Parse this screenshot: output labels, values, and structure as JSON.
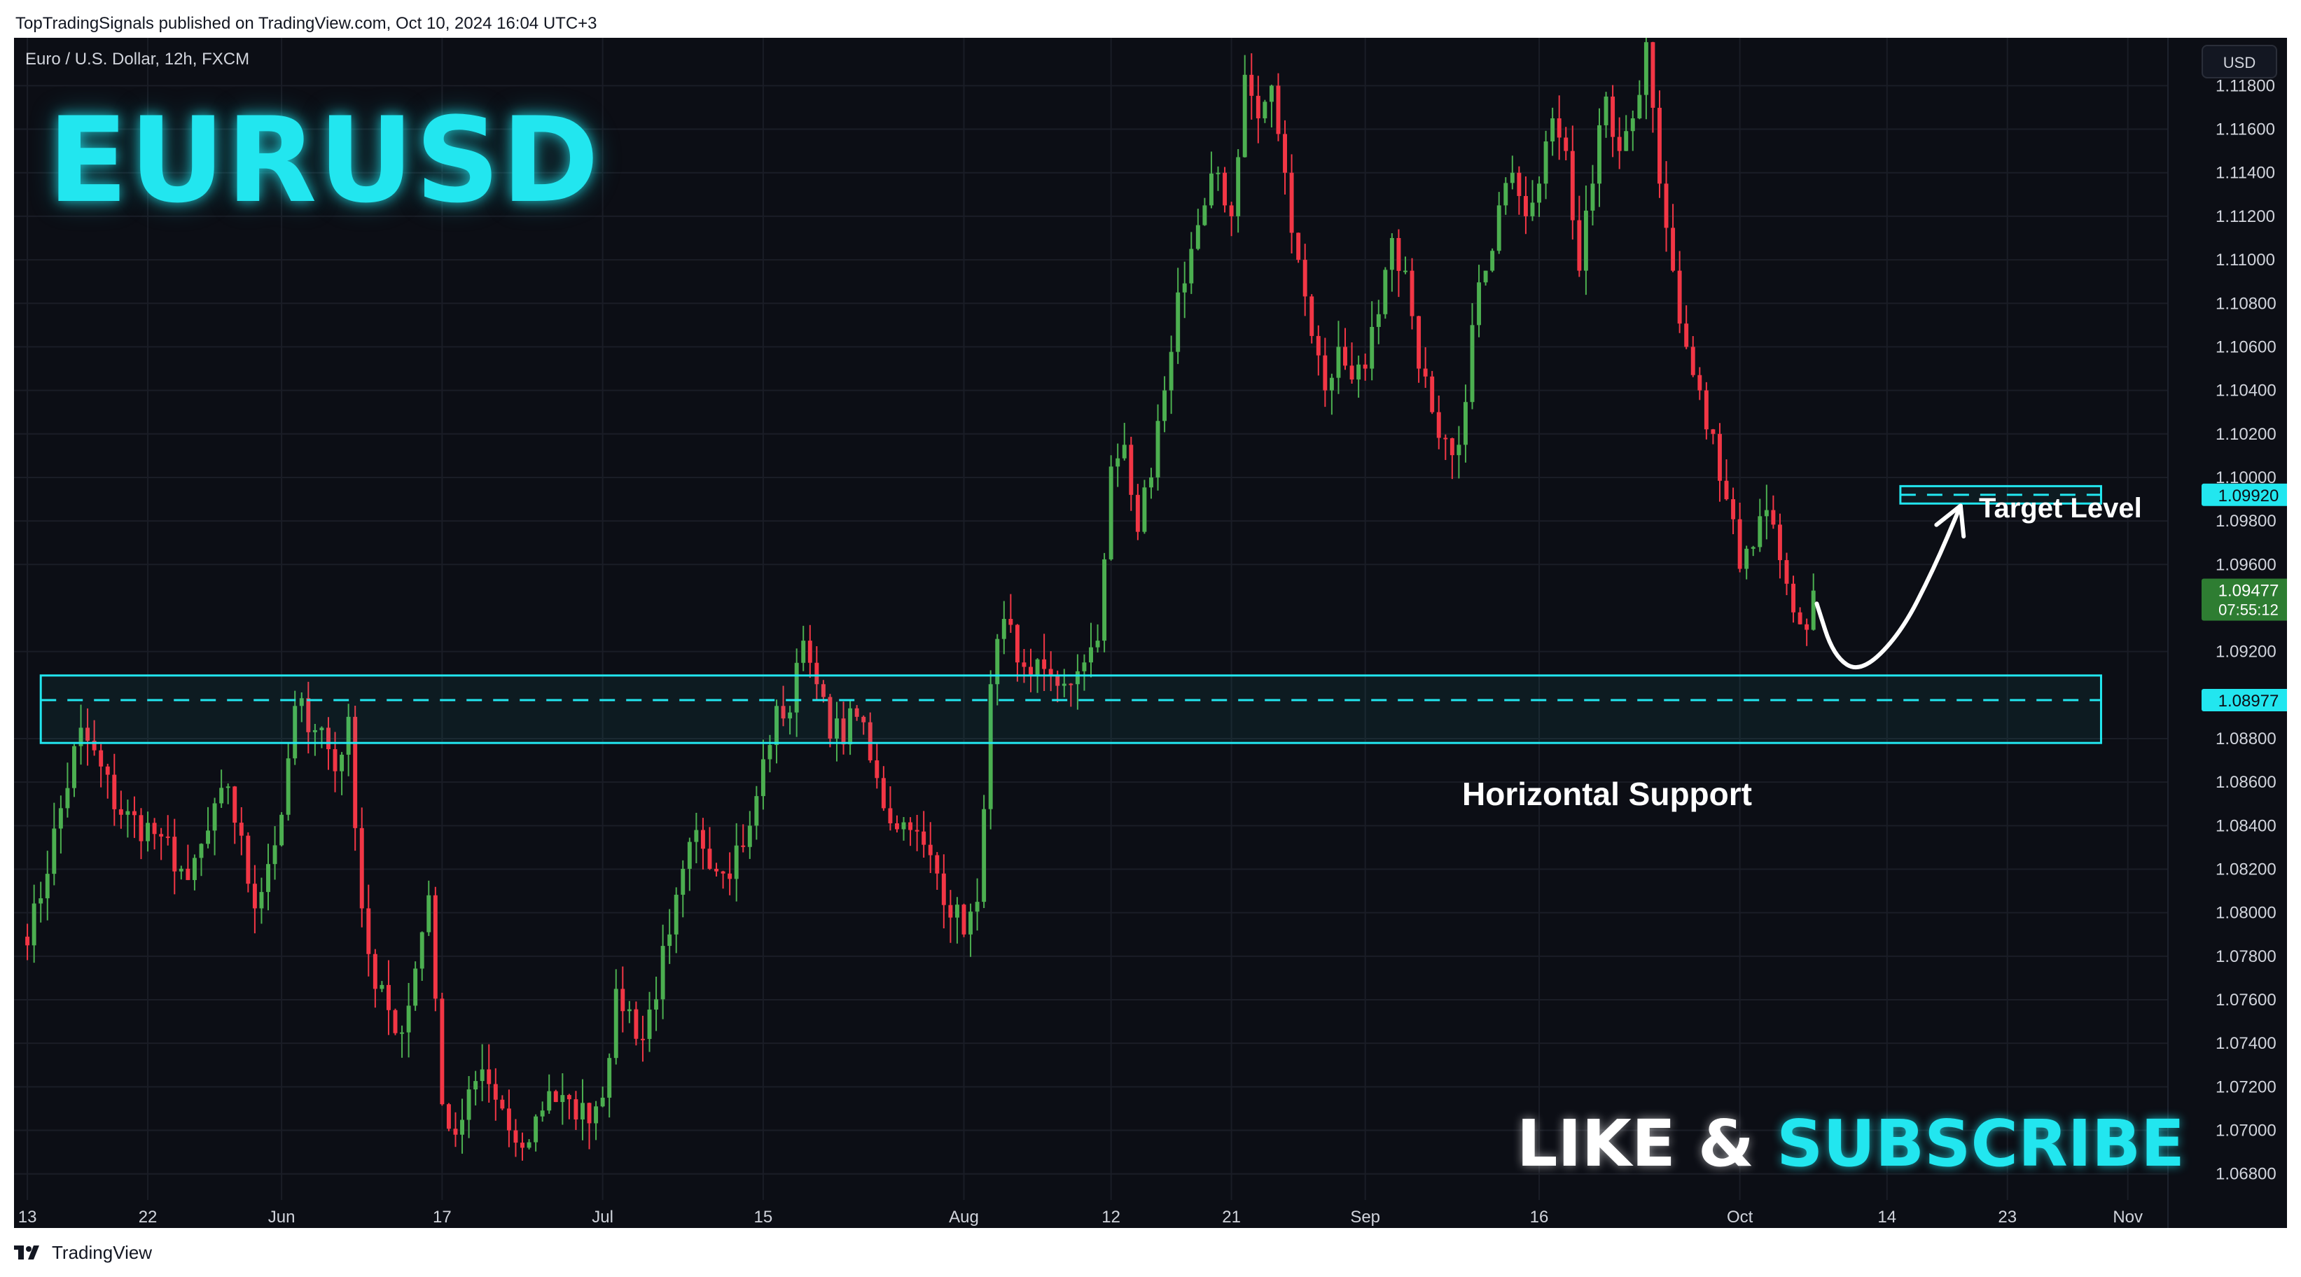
{
  "header": {
    "publish_line": "TopTradingSignals published on TradingView.com, Oct 10, 2024 16:04 UTC+3"
  },
  "footer": {
    "brand": "TradingView",
    "logo_icon": "tradingview-logo-icon"
  },
  "overlay": {
    "title": "EURUSD",
    "cta_like": "LIKE &",
    "cta_subscribe": "SUBSCRIBE",
    "target_label": "Target Level",
    "support_label": "Horizontal Support",
    "currency": "USD"
  },
  "colors": {
    "background": "#0c0e15",
    "up": "#4caf50",
    "down": "#f23645",
    "accent": "#22e6ef",
    "grid": "#1a1d26",
    "axis_text": "#d1d4dc"
  },
  "chart_data": {
    "type": "candlestick",
    "title": "Euro / U.S. Dollar, 12h, FXCM",
    "symbol": "EURUSD",
    "timeframe": "12h",
    "xlabel": "",
    "ylabel": "",
    "ylim": [
      1.0668,
      1.1202
    ],
    "y_ticks": [
      "1.11800",
      "1.11600",
      "1.11400",
      "1.11200",
      "1.11000",
      "1.10800",
      "1.10600",
      "1.10400",
      "1.10200",
      "1.10000",
      "1.09800",
      "1.09600",
      "1.09200",
      "1.08800",
      "1.08600",
      "1.08400",
      "1.08200",
      "1.08000",
      "1.07800",
      "1.07600",
      "1.07400",
      "1.07200",
      "1.07000",
      "1.06800"
    ],
    "x_ticks": [
      {
        "label": "13",
        "bar": 0
      },
      {
        "label": "22",
        "bar": 18
      },
      {
        "label": "Jun",
        "bar": 38
      },
      {
        "label": "17",
        "bar": 62
      },
      {
        "label": "Jul",
        "bar": 86
      },
      {
        "label": "15",
        "bar": 110
      },
      {
        "label": "Aug",
        "bar": 140
      },
      {
        "label": "12",
        "bar": 162
      },
      {
        "label": "21",
        "bar": 180
      },
      {
        "label": "Sep",
        "bar": 200
      },
      {
        "label": "16",
        "bar": 226
      },
      {
        "label": "Oct",
        "bar": 256
      },
      {
        "label": "14",
        "bar": 278
      },
      {
        "label": "23",
        "bar": 296
      },
      {
        "label": "Nov",
        "bar": 314
      }
    ],
    "x_domain_bars": [
      -2,
      320
    ],
    "last_price": {
      "value": 1.09477,
      "label": "1.09477",
      "countdown": "07:55:12"
    },
    "grid": true,
    "key_points": [
      {
        "bar": 0,
        "close": 1.0785
      },
      {
        "bar": 8,
        "close": 1.0885
      },
      {
        "bar": 14,
        "close": 1.0845
      },
      {
        "bar": 20,
        "close": 1.0835
      },
      {
        "bar": 24,
        "close": 1.0815
      },
      {
        "bar": 30,
        "close": 1.0858
      },
      {
        "bar": 34,
        "close": 1.0802
      },
      {
        "bar": 38,
        "close": 1.0845
      },
      {
        "bar": 40,
        "close": 1.0895
      },
      {
        "bar": 44,
        "close": 1.0885
      },
      {
        "bar": 46,
        "close": 1.0865
      },
      {
        "bar": 48,
        "close": 1.089
      },
      {
        "bar": 50,
        "close": 1.0802
      },
      {
        "bar": 52,
        "close": 1.0765
      },
      {
        "bar": 56,
        "close": 1.0745
      },
      {
        "bar": 60,
        "close": 1.0808
      },
      {
        "bar": 62,
        "close": 1.0712
      },
      {
        "bar": 64,
        "close": 1.0698
      },
      {
        "bar": 68,
        "close": 1.0728
      },
      {
        "bar": 72,
        "close": 1.07
      },
      {
        "bar": 74,
        "close": 1.0692
      },
      {
        "bar": 78,
        "close": 1.0718
      },
      {
        "bar": 82,
        "close": 1.0705
      },
      {
        "bar": 86,
        "close": 1.0715
      },
      {
        "bar": 88,
        "close": 1.0765
      },
      {
        "bar": 92,
        "close": 1.0742
      },
      {
        "bar": 96,
        "close": 1.079
      },
      {
        "bar": 100,
        "close": 1.0838
      },
      {
        "bar": 104,
        "close": 1.0818
      },
      {
        "bar": 108,
        "close": 1.084
      },
      {
        "bar": 112,
        "close": 1.0895
      },
      {
        "bar": 114,
        "close": 1.0892
      },
      {
        "bar": 116,
        "close": 1.0925
      },
      {
        "bar": 118,
        "close": 1.0905
      },
      {
        "bar": 120,
        "close": 1.088
      },
      {
        "bar": 124,
        "close": 1.089
      },
      {
        "bar": 126,
        "close": 1.087
      },
      {
        "bar": 128,
        "close": 1.0848
      },
      {
        "bar": 132,
        "close": 1.0838
      },
      {
        "bar": 136,
        "close": 1.0818
      },
      {
        "bar": 140,
        "close": 1.079
      },
      {
        "bar": 142,
        "close": 1.0805
      },
      {
        "bar": 144,
        "close": 1.0905
      },
      {
        "bar": 146,
        "close": 1.0935
      },
      {
        "bar": 148,
        "close": 1.0915
      },
      {
        "bar": 152,
        "close": 1.0912
      },
      {
        "bar": 156,
        "close": 1.0905
      },
      {
        "bar": 158,
        "close": 1.0915
      },
      {
        "bar": 160,
        "close": 1.0925
      },
      {
        "bar": 162,
        "close": 1.1005
      },
      {
        "bar": 164,
        "close": 1.1015
      },
      {
        "bar": 166,
        "close": 1.0975
      },
      {
        "bar": 168,
        "close": 1.1
      },
      {
        "bar": 170,
        "close": 1.104
      },
      {
        "bar": 172,
        "close": 1.1085
      },
      {
        "bar": 174,
        "close": 1.1105
      },
      {
        "bar": 176,
        "close": 1.1125
      },
      {
        "bar": 178,
        "close": 1.114
      },
      {
        "bar": 180,
        "close": 1.112
      },
      {
        "bar": 182,
        "close": 1.1185
      },
      {
        "bar": 184,
        "close": 1.1165
      },
      {
        "bar": 186,
        "close": 1.118
      },
      {
        "bar": 188,
        "close": 1.114
      },
      {
        "bar": 190,
        "close": 1.11
      },
      {
        "bar": 192,
        "close": 1.1065
      },
      {
        "bar": 194,
        "close": 1.104
      },
      {
        "bar": 196,
        "close": 1.106
      },
      {
        "bar": 198,
        "close": 1.1045
      },
      {
        "bar": 200,
        "close": 1.105
      },
      {
        "bar": 202,
        "close": 1.1075
      },
      {
        "bar": 204,
        "close": 1.111
      },
      {
        "bar": 206,
        "close": 1.1095
      },
      {
        "bar": 208,
        "close": 1.105
      },
      {
        "bar": 210,
        "close": 1.103
      },
      {
        "bar": 212,
        "close": 1.1018
      },
      {
        "bar": 214,
        "close": 1.1015
      },
      {
        "bar": 216,
        "close": 1.107
      },
      {
        "bar": 218,
        "close": 1.1095
      },
      {
        "bar": 220,
        "close": 1.1125
      },
      {
        "bar": 222,
        "close": 1.114
      },
      {
        "bar": 224,
        "close": 1.112
      },
      {
        "bar": 226,
        "close": 1.1135
      },
      {
        "bar": 228,
        "close": 1.1165
      },
      {
        "bar": 230,
        "close": 1.115
      },
      {
        "bar": 232,
        "close": 1.1095
      },
      {
        "bar": 234,
        "close": 1.1135
      },
      {
        "bar": 236,
        "close": 1.1175
      },
      {
        "bar": 238,
        "close": 1.115
      },
      {
        "bar": 240,
        "close": 1.1165
      },
      {
        "bar": 242,
        "close": 1.12
      },
      {
        "bar": 244,
        "close": 1.1135
      },
      {
        "bar": 246,
        "close": 1.1095
      },
      {
        "bar": 248,
        "close": 1.106
      },
      {
        "bar": 250,
        "close": 1.104
      },
      {
        "bar": 252,
        "close": 1.102
      },
      {
        "bar": 254,
        "close": 1.099
      },
      {
        "bar": 256,
        "close": 1.0958
      },
      {
        "bar": 258,
        "close": 1.0968
      },
      {
        "bar": 260,
        "close": 1.0985
      },
      {
        "bar": 262,
        "close": 1.0962
      },
      {
        "bar": 264,
        "close": 1.0938
      },
      {
        "bar": 266,
        "close": 1.093
      },
      {
        "bar": 267,
        "close": 1.0948
      }
    ],
    "annotations": {
      "support_zone": {
        "top": 1.0909,
        "bottom": 1.0878,
        "level": 1.08977,
        "level_label": "1.08977",
        "label": "Horizontal Support",
        "from_bar": 2,
        "to_bar": 310
      },
      "target_zone": {
        "top": 1.0996,
        "bottom": 1.0988,
        "level": 1.0992,
        "level_label": "1.09920",
        "label": "Target Level",
        "from_bar": 280,
        "to_bar": 310
      },
      "projection_curve": [
        {
          "bar": 267.5,
          "price": 1.0942
        },
        {
          "bar": 270,
          "price": 1.0918
        },
        {
          "bar": 274,
          "price": 1.091
        },
        {
          "bar": 280,
          "price": 1.0928
        },
        {
          "bar": 285,
          "price": 1.0958
        },
        {
          "bar": 289,
          "price": 1.0987
        }
      ]
    }
  }
}
